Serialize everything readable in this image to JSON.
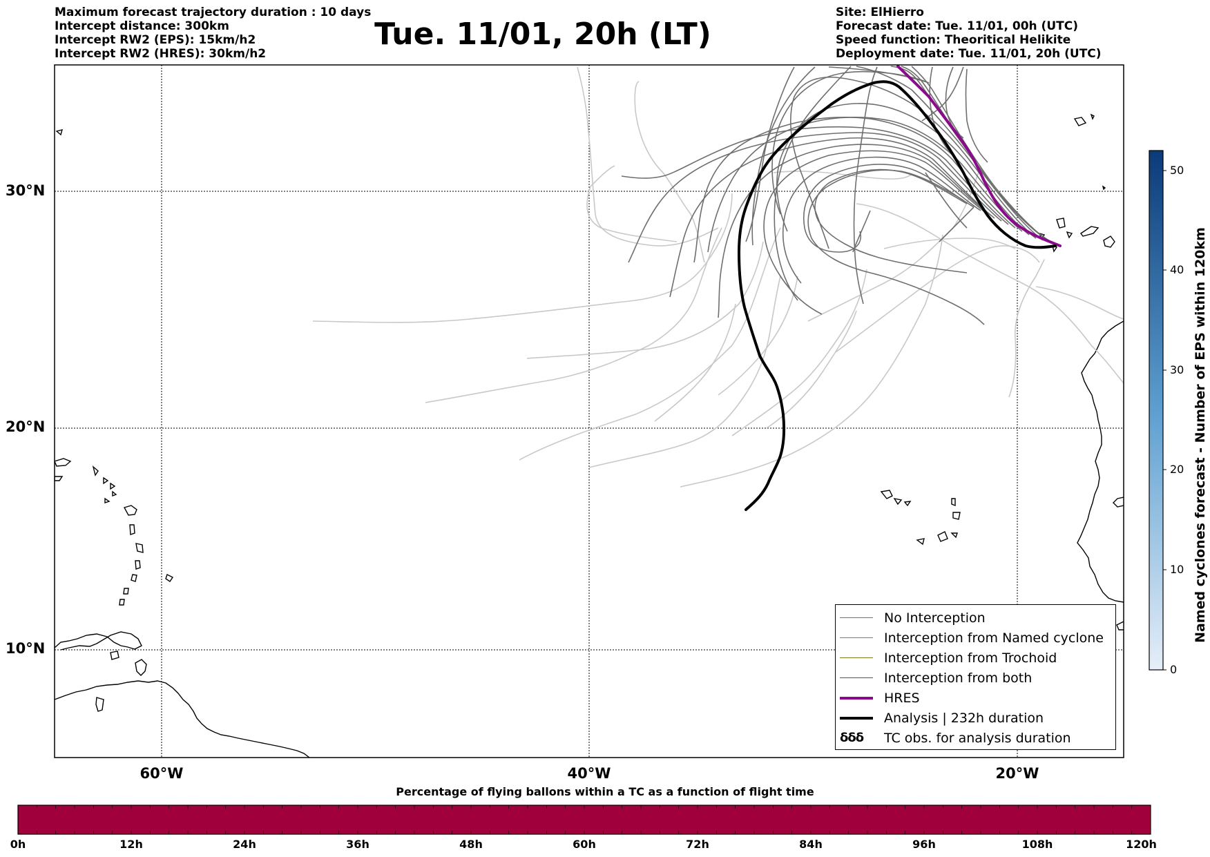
{
  "header_left": [
    "Maximum forecast trajectory duration : 10 days",
    "Intercept distance: 300km",
    "Intercept RW2 (EPS):  15km/h2",
    "Intercept RW2 (HRES): 30km/h2"
  ],
  "title": "Tue. 11/01, 20h (LT)",
  "header_right": [
    "Site: ElHierro",
    "Forecast date: Tue. 11/01, 00h (UTC)",
    "Speed function: Theoritical Helikite",
    "Deployment date: Tue. 11/01, 20h (UTC)"
  ],
  "map": {
    "lat_labels": [
      "30°N",
      "20°N",
      "10°N"
    ],
    "lon_labels": [
      "60°W",
      "40°W",
      "20°W"
    ],
    "grid": true,
    "colors": {
      "no_interception": "#6e6e6e",
      "faint_track": "#c8c8c8",
      "hres": "#8b0a8b",
      "analysis": "#000000",
      "named_cyclone": "#e8551c",
      "trochoid": "#7a7a1a",
      "both": "#1a7a1a"
    }
  },
  "legend": {
    "items": [
      {
        "label": "No Interception",
        "color": "#6e6e6e",
        "width": 1.5
      },
      {
        "label": "Interception from Named cyclone",
        "color": "#e8551c",
        "width": 1.5
      },
      {
        "label": "Interception from Trochoid",
        "color": "#7a7a1a",
        "width": 1.5
      },
      {
        "label": "Interception from both",
        "color": "#1a7a1a",
        "width": 1.5
      },
      {
        "label": "HRES",
        "color": "#8b0a8b",
        "width": 4
      },
      {
        "label": "Analysis | 232h duration",
        "color": "#000000",
        "width": 4
      },
      {
        "label": "TC obs. for analysis duration",
        "color": "#000000",
        "width": 0
      }
    ],
    "placement": "bottom-right"
  },
  "colorbar_right": {
    "label": "Named cyclones forecast - Number of EPS within 120km",
    "ticks": [
      "0",
      "10",
      "20",
      "30",
      "40",
      "50"
    ],
    "range": [
      0,
      52
    ]
  },
  "colorbar_bottom": {
    "title": "Percentage of flying ballons within a TC as a function of flight time",
    "ticks": [
      "0h",
      "12h",
      "24h",
      "36h",
      "48h",
      "60h",
      "72h",
      "84h",
      "96h",
      "108h",
      "120h"
    ],
    "fill_color": "#a0003c"
  }
}
